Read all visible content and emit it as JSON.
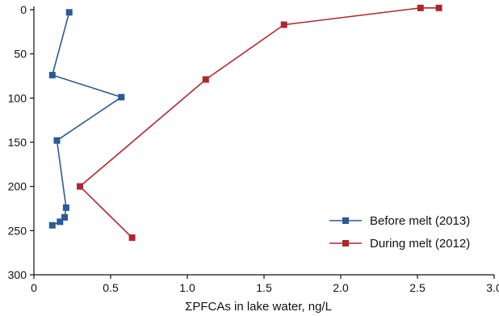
{
  "chart_data": {
    "type": "line",
    "title": "",
    "xlabel": "ΣPFCAs in lake water, ng/L",
    "ylabel": "",
    "xlim": [
      0,
      3.0
    ],
    "ylim": [
      0,
      300
    ],
    "y_inverted": true,
    "x_ticks": [
      "0",
      "0.5",
      "1.0",
      "1.5",
      "2.0",
      "2.5",
      "3.0"
    ],
    "y_ticks": [
      "0",
      "50",
      "100",
      "150",
      "200",
      "250",
      "300"
    ],
    "grid": false,
    "legend_position": "bottom-right",
    "series": [
      {
        "name": "Before melt (2013)",
        "color": "#2c5a97",
        "marker": "square",
        "points": [
          {
            "x": 0.23,
            "y": 3
          },
          {
            "x": 0.12,
            "y": 74
          },
          {
            "x": 0.57,
            "y": 99
          },
          {
            "x": 0.15,
            "y": 148
          },
          {
            "x": 0.21,
            "y": 224
          },
          {
            "x": 0.2,
            "y": 235
          },
          {
            "x": 0.17,
            "y": 240
          },
          {
            "x": 0.12,
            "y": 244
          }
        ]
      },
      {
        "name": "During melt (2012)",
        "color": "#b0262e",
        "marker": "square",
        "points": [
          {
            "x": 2.64,
            "y": -2
          },
          {
            "x": 2.52,
            "y": -2
          },
          {
            "x": 1.63,
            "y": 17
          },
          {
            "x": 1.12,
            "y": 79
          },
          {
            "x": 0.3,
            "y": 200
          },
          {
            "x": 0.64,
            "y": 258
          }
        ]
      }
    ]
  }
}
